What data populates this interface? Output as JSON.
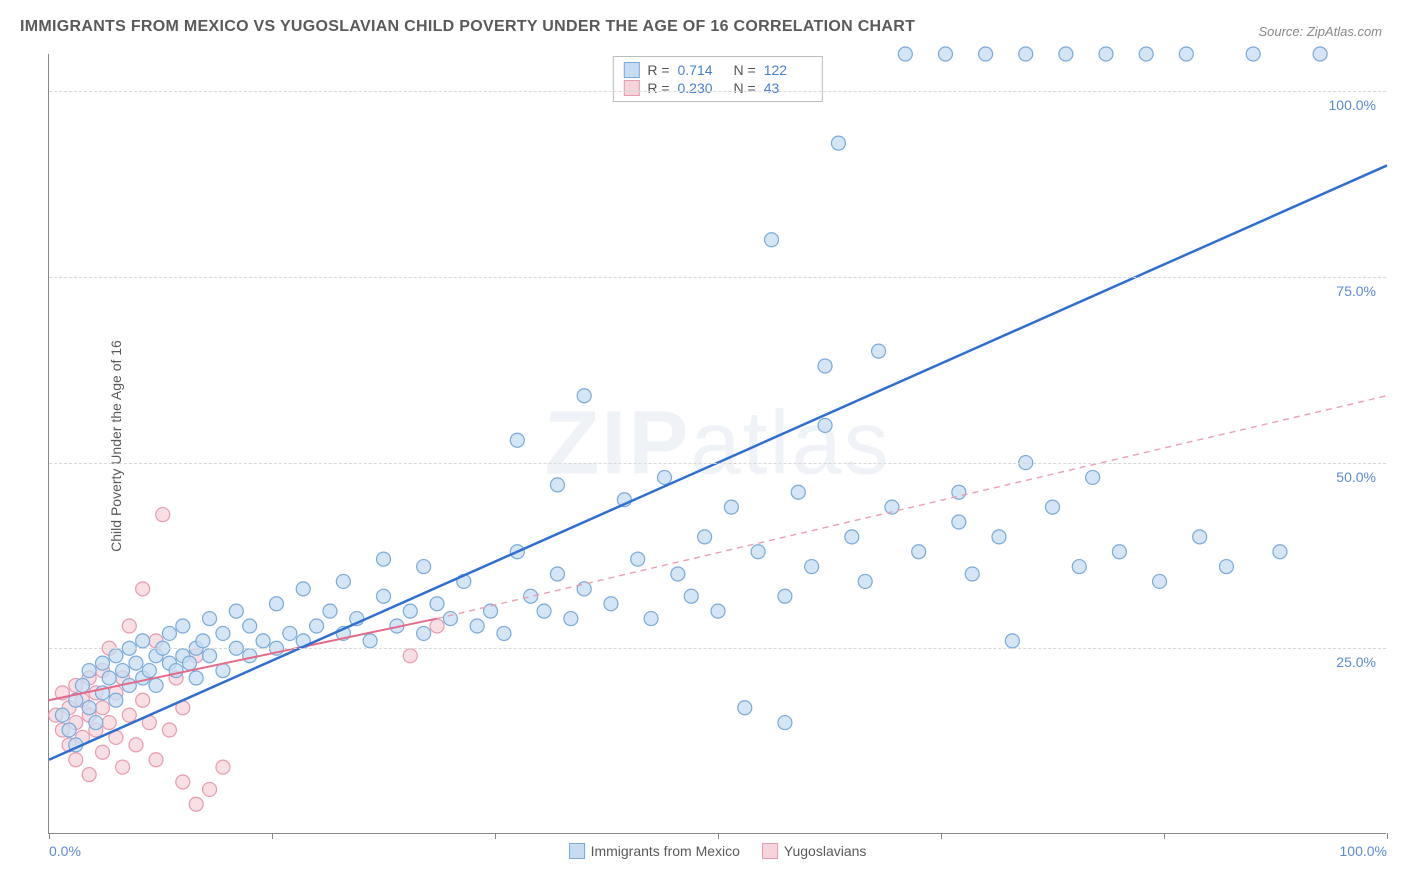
{
  "title": "IMMIGRANTS FROM MEXICO VS YUGOSLAVIAN CHILD POVERTY UNDER THE AGE OF 16 CORRELATION CHART",
  "source": "Source: ZipAtlas.com",
  "y_axis_label": "Child Poverty Under the Age of 16",
  "watermark": {
    "prefix": "ZIP",
    "suffix": "atlas"
  },
  "chart": {
    "type": "scatter",
    "xlim": [
      0,
      100
    ],
    "ylim": [
      0,
      105
    ],
    "x_ticks": [
      0,
      16.67,
      33.33,
      50,
      66.67,
      83.33,
      100
    ],
    "x_tick_labels": {
      "0": "0.0%",
      "100": "100.0%"
    },
    "y_gridlines": [
      25,
      50,
      75,
      100
    ],
    "y_tick_labels": {
      "25": "25.0%",
      "50": "50.0%",
      "75": "75.0%",
      "100": "100.0%"
    },
    "background_color": "#ffffff",
    "grid_color": "#d8d8d8",
    "axis_color": "#888888",
    "tick_label_color": "#5b8bd4",
    "marker_radius": 7,
    "marker_stroke_width": 1.2,
    "series": [
      {
        "name": "Immigrants from Mexico",
        "fill": "#c6dcf3",
        "stroke": "#7aaad9",
        "r_label": "R =",
        "r_value": "0.714",
        "n_label": "N =",
        "n_value": "122",
        "trend": {
          "x1": 0,
          "y1": 10,
          "x2": 100,
          "y2": 90,
          "color": "#2f6fd0",
          "width": 2.5,
          "dash": ""
        },
        "points": [
          [
            1,
            16
          ],
          [
            1.5,
            14
          ],
          [
            2,
            18
          ],
          [
            2,
            12
          ],
          [
            2.5,
            20
          ],
          [
            3,
            17
          ],
          [
            3,
            22
          ],
          [
            3.5,
            15
          ],
          [
            4,
            19
          ],
          [
            4,
            23
          ],
          [
            4.5,
            21
          ],
          [
            5,
            18
          ],
          [
            5,
            24
          ],
          [
            5.5,
            22
          ],
          [
            6,
            20
          ],
          [
            6,
            25
          ],
          [
            6.5,
            23
          ],
          [
            7,
            21
          ],
          [
            7,
            26
          ],
          [
            7.5,
            22
          ],
          [
            8,
            24
          ],
          [
            8,
            20
          ],
          [
            8.5,
            25
          ],
          [
            9,
            23
          ],
          [
            9,
            27
          ],
          [
            9.5,
            22
          ],
          [
            10,
            24
          ],
          [
            10,
            28
          ],
          [
            10.5,
            23
          ],
          [
            11,
            25
          ],
          [
            11,
            21
          ],
          [
            11.5,
            26
          ],
          [
            12,
            24
          ],
          [
            12,
            29
          ],
          [
            13,
            22
          ],
          [
            13,
            27
          ],
          [
            14,
            25
          ],
          [
            14,
            30
          ],
          [
            15,
            24
          ],
          [
            15,
            28
          ],
          [
            16,
            26
          ],
          [
            17,
            25
          ],
          [
            17,
            31
          ],
          [
            18,
            27
          ],
          [
            19,
            26
          ],
          [
            19,
            33
          ],
          [
            20,
            28
          ],
          [
            21,
            30
          ],
          [
            22,
            27
          ],
          [
            22,
            34
          ],
          [
            23,
            29
          ],
          [
            24,
            26
          ],
          [
            25,
            32
          ],
          [
            25,
            37
          ],
          [
            26,
            28
          ],
          [
            27,
            30
          ],
          [
            28,
            27
          ],
          [
            28,
            36
          ],
          [
            29,
            31
          ],
          [
            30,
            29
          ],
          [
            31,
            34
          ],
          [
            32,
            28
          ],
          [
            33,
            30
          ],
          [
            34,
            27
          ],
          [
            35,
            38
          ],
          [
            35,
            53
          ],
          [
            36,
            32
          ],
          [
            37,
            30
          ],
          [
            38,
            47
          ],
          [
            38,
            35
          ],
          [
            39,
            29
          ],
          [
            40,
            59
          ],
          [
            40,
            33
          ],
          [
            42,
            31
          ],
          [
            43,
            45
          ],
          [
            44,
            37
          ],
          [
            45,
            29
          ],
          [
            46,
            48
          ],
          [
            47,
            35
          ],
          [
            48,
            32
          ],
          [
            49,
            40
          ],
          [
            50,
            30
          ],
          [
            51,
            44
          ],
          [
            52,
            17
          ],
          [
            53,
            38
          ],
          [
            54,
            80
          ],
          [
            55,
            32
          ],
          [
            55,
            15
          ],
          [
            56,
            46
          ],
          [
            57,
            36
          ],
          [
            58,
            55
          ],
          [
            58,
            63
          ],
          [
            59,
            93
          ],
          [
            60,
            40
          ],
          [
            61,
            34
          ],
          [
            62,
            65
          ],
          [
            63,
            44
          ],
          [
            64,
            105
          ],
          [
            65,
            38
          ],
          [
            67,
            105
          ],
          [
            68,
            46
          ],
          [
            69,
            35
          ],
          [
            70,
            105
          ],
          [
            71,
            40
          ],
          [
            72,
            26
          ],
          [
            73,
            105
          ],
          [
            75,
            44
          ],
          [
            76,
            105
          ],
          [
            77,
            36
          ],
          [
            78,
            48
          ],
          [
            79,
            105
          ],
          [
            80,
            38
          ],
          [
            82,
            105
          ],
          [
            83,
            34
          ],
          [
            85,
            105
          ],
          [
            86,
            40
          ],
          [
            88,
            36
          ],
          [
            90,
            105
          ],
          [
            92,
            38
          ],
          [
            95,
            105
          ],
          [
            73,
            50
          ],
          [
            68,
            42
          ]
        ]
      },
      {
        "name": "Yugoslavians",
        "fill": "#f6d4db",
        "stroke": "#e79bb0",
        "r_label": "R =",
        "r_value": "0.230",
        "n_label": "N =",
        "n_value": "43",
        "trend_solid": {
          "x1": 0,
          "y1": 18,
          "x2": 29,
          "y2": 29,
          "color": "#e46a8a",
          "width": 2,
          "dash": ""
        },
        "trend_dashed": {
          "x1": 29,
          "y1": 29,
          "x2": 100,
          "y2": 59,
          "color": "#e9a0b3",
          "width": 1.4,
          "dash": "6 5"
        },
        "points": [
          [
            0.5,
            16
          ],
          [
            1,
            14
          ],
          [
            1,
            19
          ],
          [
            1.5,
            12
          ],
          [
            1.5,
            17
          ],
          [
            2,
            15
          ],
          [
            2,
            20
          ],
          [
            2,
            10
          ],
          [
            2.5,
            13
          ],
          [
            2.5,
            18
          ],
          [
            3,
            16
          ],
          [
            3,
            21
          ],
          [
            3,
            8
          ],
          [
            3.5,
            14
          ],
          [
            3.5,
            19
          ],
          [
            4,
            11
          ],
          [
            4,
            17
          ],
          [
            4,
            22
          ],
          [
            4.5,
            15
          ],
          [
            4.5,
            25
          ],
          [
            5,
            13
          ],
          [
            5,
            19
          ],
          [
            5.5,
            9
          ],
          [
            5.5,
            21
          ],
          [
            6,
            16
          ],
          [
            6,
            28
          ],
          [
            6.5,
            12
          ],
          [
            7,
            18
          ],
          [
            7,
            33
          ],
          [
            7.5,
            15
          ],
          [
            8,
            10
          ],
          [
            8,
            26
          ],
          [
            8.5,
            43
          ],
          [
            9,
            14
          ],
          [
            9.5,
            21
          ],
          [
            10,
            7
          ],
          [
            10,
            17
          ],
          [
            11,
            4
          ],
          [
            11,
            24
          ],
          [
            12,
            6
          ],
          [
            13,
            9
          ],
          [
            27,
            24
          ],
          [
            29,
            28
          ]
        ]
      }
    ]
  },
  "x_legend": [
    {
      "label": "Immigrants from Mexico",
      "fill": "#c6dcf3",
      "stroke": "#7aaad9"
    },
    {
      "label": "Yugoslavians",
      "fill": "#f6d4db",
      "stroke": "#e79bb0"
    }
  ]
}
